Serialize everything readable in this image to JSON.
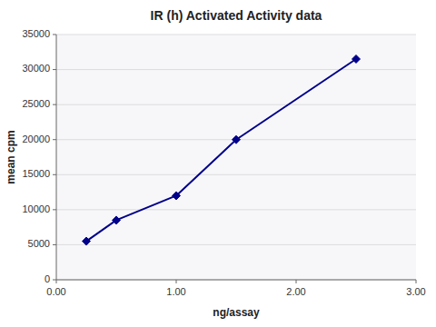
{
  "chart_data": {
    "type": "line",
    "title": "IR (h) Activated Activity data",
    "xlabel": "ng/assay",
    "ylabel": "mean cpm",
    "x": [
      0.25,
      0.5,
      1.0,
      1.5,
      2.5
    ],
    "values": [
      5500,
      8500,
      12000,
      20000,
      31500
    ],
    "color": "#00008B",
    "marker": "diamond",
    "xlim": [
      0.0,
      3.0
    ],
    "ylim": [
      0,
      35000
    ],
    "xticks": [
      {
        "value": 0,
        "label": "0.00"
      },
      {
        "value": 1,
        "label": "1.00"
      },
      {
        "value": 2,
        "label": "2.00"
      },
      {
        "value": 3,
        "label": "3.00"
      }
    ],
    "yticks": [
      0,
      5000,
      10000,
      15000,
      20000,
      25000,
      30000,
      35000
    ],
    "grid": true
  }
}
